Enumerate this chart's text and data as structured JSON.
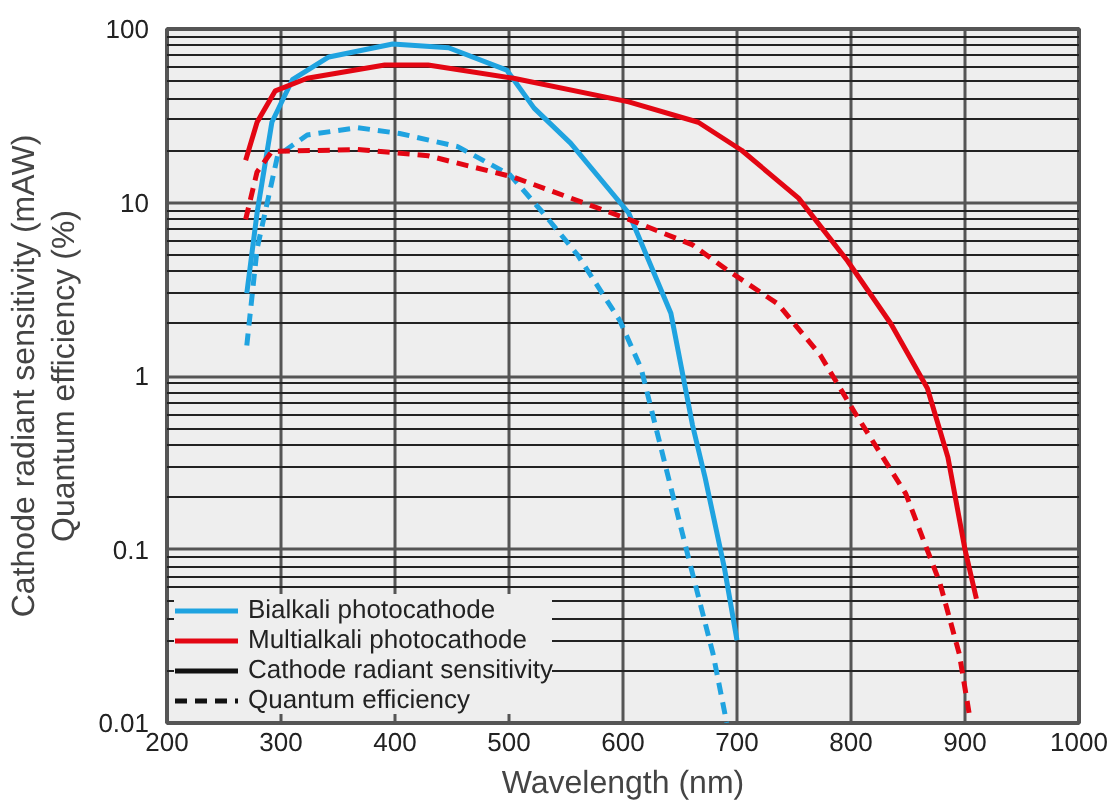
{
  "chart_data": {
    "type": "line",
    "xlabel": "Wavelength (nm)",
    "ylabel": "Cathode radiant sensitivity (mAW)\nQuantum efficiency (%)",
    "log": "y",
    "xlim": [
      200,
      1000
    ],
    "xticks": [
      200,
      300,
      400,
      500,
      600,
      700,
      800,
      900,
      1000
    ],
    "ylim": [
      0.01,
      100
    ],
    "yticks": [
      0.01,
      0.1,
      1,
      10,
      100
    ],
    "grid": true,
    "legend": "bottom left",
    "marker": "none",
    "annotations": [
      "Cathode radiant sensitivity",
      "Quantum efficiency"
    ],
    "series": [
      {
        "name": "Bialkali photocathode",
        "color": "#1fa3e0",
        "line_style": "solid",
        "x": [
          270,
          279,
          292,
          310,
          342,
          398,
          447,
          498,
          522,
          554,
          605,
          642,
          661,
          672,
          689,
          700
        ],
        "values": [
          3.0,
          8.7,
          29,
          51,
          69,
          82,
          78,
          58,
          35,
          22,
          8.7,
          2.3,
          0.52,
          0.26,
          0.078,
          0.03
        ]
      },
      {
        "name": "Multialkali photocathode",
        "color": "#e30613",
        "line_style": "solid",
        "x": [
          269,
          279,
          295,
          323,
          391,
          429,
          504,
          605,
          666,
          704,
          754,
          797,
          835,
          867,
          885,
          900,
          910
        ],
        "values": [
          17.5,
          29,
          44,
          52,
          62,
          62,
          52,
          38,
          29,
          20,
          10.6,
          4.6,
          2.0,
          0.85,
          0.34,
          0.1,
          0.052
        ]
      },
      {
        "color": "#1fa3e0",
        "line_style": "dashed",
        "x": [
          270,
          279,
          297,
          323,
          367,
          404,
          455,
          501,
          530,
          560,
          597,
          616,
          629,
          657,
          679,
          691
        ],
        "values": [
          1.5,
          5.4,
          18.6,
          24.5,
          27,
          25,
          21,
          14.4,
          8.7,
          5.0,
          2.1,
          1.1,
          0.5,
          0.092,
          0.025,
          0.01
        ]
      },
      {
        "color": "#e30613",
        "line_style": "dashed",
        "x": [
          269,
          279,
          292,
          367,
          429,
          504,
          605,
          661,
          691,
          736,
          773,
          803,
          848,
          878,
          895,
          904
        ],
        "values": [
          8.0,
          15,
          19.7,
          20.2,
          18.6,
          14,
          8.0,
          5.7,
          4.1,
          2.6,
          1.32,
          0.62,
          0.21,
          0.064,
          0.025,
          0.011
        ]
      }
    ]
  }
}
